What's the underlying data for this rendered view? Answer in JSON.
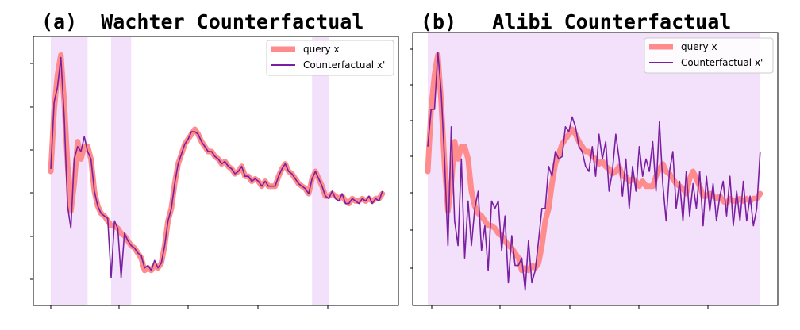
{
  "chart_data": [
    {
      "type": "line",
      "title": "(a)  Wachter Counterfactual",
      "legend": {
        "position": "top-right",
        "entries": [
          "query x",
          "Counterfactual x'"
        ]
      },
      "colors": {
        "query": "#ff8c8c",
        "counterfactual": "#7b1fa2",
        "highlight": "#f3e1fb"
      },
      "ylim": [
        0,
        1
      ],
      "x_range": [
        0,
        100
      ],
      "highlight_regions": [
        [
          0,
          11
        ],
        [
          18,
          24
        ],
        [
          78,
          83
        ]
      ],
      "series": [
        {
          "name": "query x",
          "x": [
            0,
            1,
            2,
            3,
            4,
            5,
            6,
            7,
            8,
            9,
            10,
            11,
            12,
            13,
            14,
            15,
            16,
            17,
            18,
            19,
            20,
            21,
            22,
            23,
            24,
            25,
            26,
            27,
            28,
            29,
            30,
            31,
            32,
            33,
            34,
            35,
            36,
            37,
            38,
            39,
            40,
            41,
            42,
            43,
            44,
            45,
            46,
            47,
            48,
            49,
            50,
            51,
            52,
            53,
            54,
            55,
            56,
            57,
            58,
            59,
            60,
            61,
            62,
            63,
            64,
            65,
            66,
            67,
            68,
            69,
            70,
            71,
            72,
            73,
            74,
            75,
            76,
            77,
            78,
            79,
            80,
            81,
            82,
            83,
            84,
            85,
            86,
            87,
            88,
            89,
            90,
            91,
            92,
            93,
            94,
            95,
            96,
            97,
            98,
            99
          ],
          "values": [
            0.5,
            0.75,
            0.89,
            0.97,
            0.78,
            0.53,
            0.34,
            0.45,
            0.62,
            0.55,
            0.6,
            0.6,
            0.55,
            0.42,
            0.36,
            0.33,
            0.32,
            0.3,
            0.28,
            0.28,
            0.27,
            0.25,
            0.24,
            0.22,
            0.2,
            0.19,
            0.17,
            0.15,
            0.1,
            0.11,
            0.1,
            0.12,
            0.11,
            0.13,
            0.2,
            0.3,
            0.35,
            0.45,
            0.53,
            0.57,
            0.61,
            0.63,
            0.65,
            0.67,
            0.65,
            0.62,
            0.6,
            0.58,
            0.58,
            0.56,
            0.55,
            0.53,
            0.54,
            0.52,
            0.51,
            0.49,
            0.5,
            0.52,
            0.48,
            0.48,
            0.46,
            0.47,
            0.46,
            0.44,
            0.46,
            0.44,
            0.44,
            0.44,
            0.48,
            0.51,
            0.53,
            0.5,
            0.49,
            0.47,
            0.45,
            0.44,
            0.43,
            0.41,
            0.47,
            0.5,
            0.47,
            0.44,
            0.4,
            0.4,
            0.41,
            0.4,
            0.39,
            0.4,
            0.38,
            0.37,
            0.39,
            0.38,
            0.38,
            0.39,
            0.38,
            0.39,
            0.38,
            0.39,
            0.39,
            0.41
          ]
        },
        {
          "name": "Counterfactual x'",
          "x": [
            0,
            1,
            2,
            3,
            4,
            5,
            6,
            7,
            8,
            9,
            10,
            11,
            12,
            13,
            14,
            15,
            16,
            17,
            18,
            19,
            20,
            21,
            22,
            23,
            24,
            25,
            26,
            27,
            28,
            29,
            30,
            31,
            32,
            33,
            34,
            35,
            36,
            37,
            38,
            39,
            40,
            41,
            42,
            43,
            44,
            45,
            46,
            47,
            48,
            49,
            50,
            51,
            52,
            53,
            54,
            55,
            56,
            57,
            58,
            59,
            60,
            61,
            62,
            63,
            64,
            65,
            66,
            67,
            68,
            69,
            70,
            71,
            72,
            73,
            74,
            75,
            76,
            77,
            78,
            79,
            80,
            81,
            82,
            83,
            84,
            85,
            86,
            87,
            88,
            89,
            90,
            91,
            92,
            93,
            94,
            95,
            96,
            97,
            98,
            99
          ],
          "values": [
            0.51,
            0.78,
            0.84,
            0.96,
            0.72,
            0.36,
            0.27,
            0.55,
            0.6,
            0.58,
            0.64,
            0.58,
            0.55,
            0.42,
            0.36,
            0.33,
            0.32,
            0.31,
            0.07,
            0.3,
            0.27,
            0.07,
            0.25,
            0.22,
            0.2,
            0.19,
            0.17,
            0.16,
            0.11,
            0.12,
            0.1,
            0.14,
            0.11,
            0.13,
            0.2,
            0.3,
            0.35,
            0.45,
            0.53,
            0.57,
            0.61,
            0.63,
            0.66,
            0.66,
            0.65,
            0.62,
            0.6,
            0.58,
            0.58,
            0.56,
            0.55,
            0.53,
            0.54,
            0.52,
            0.51,
            0.49,
            0.5,
            0.52,
            0.48,
            0.48,
            0.46,
            0.47,
            0.46,
            0.44,
            0.46,
            0.44,
            0.44,
            0.44,
            0.48,
            0.51,
            0.53,
            0.5,
            0.49,
            0.47,
            0.45,
            0.44,
            0.43,
            0.41,
            0.47,
            0.5,
            0.47,
            0.44,
            0.4,
            0.39,
            0.42,
            0.39,
            0.38,
            0.41,
            0.37,
            0.37,
            0.39,
            0.38,
            0.37,
            0.39,
            0.38,
            0.4,
            0.37,
            0.39,
            0.38,
            0.42
          ]
        }
      ]
    },
    {
      "type": "line",
      "title": "(b)   Alibi Counterfactual",
      "legend": {
        "position": "top-right",
        "entries": [
          "query x",
          "Counterfactual x'"
        ]
      },
      "colors": {
        "query": "#ff8c8c",
        "counterfactual": "#7b1fa2",
        "highlight": "#f3e1fb"
      },
      "ylim": [
        0,
        1
      ],
      "x_range": [
        0,
        100
      ],
      "highlight_regions": [
        [
          0,
          99
        ]
      ],
      "series": [
        {
          "name": "query x",
          "x": [
            0,
            1,
            2,
            3,
            4,
            5,
            6,
            7,
            8,
            9,
            10,
            11,
            12,
            13,
            14,
            15,
            16,
            17,
            18,
            19,
            20,
            21,
            22,
            23,
            24,
            25,
            26,
            27,
            28,
            29,
            30,
            31,
            32,
            33,
            34,
            35,
            36,
            37,
            38,
            39,
            40,
            41,
            42,
            43,
            44,
            45,
            46,
            47,
            48,
            49,
            50,
            51,
            52,
            53,
            54,
            55,
            56,
            57,
            58,
            59,
            60,
            61,
            62,
            63,
            64,
            65,
            66,
            67,
            68,
            69,
            70,
            71,
            72,
            73,
            74,
            75,
            76,
            77,
            78,
            79,
            80,
            81,
            82,
            83,
            84,
            85,
            86,
            87,
            88,
            89,
            90,
            91,
            92,
            93,
            94,
            95,
            96,
            97,
            98,
            99
          ],
          "values": [
            0.5,
            0.75,
            0.89,
            0.97,
            0.78,
            0.53,
            0.34,
            0.45,
            0.62,
            0.55,
            0.6,
            0.6,
            0.55,
            0.42,
            0.36,
            0.33,
            0.32,
            0.3,
            0.28,
            0.28,
            0.27,
            0.25,
            0.24,
            0.22,
            0.2,
            0.19,
            0.17,
            0.15,
            0.1,
            0.11,
            0.1,
            0.12,
            0.11,
            0.13,
            0.2,
            0.3,
            0.35,
            0.45,
            0.53,
            0.57,
            0.61,
            0.63,
            0.65,
            0.67,
            0.65,
            0.62,
            0.6,
            0.58,
            0.58,
            0.56,
            0.55,
            0.53,
            0.54,
            0.52,
            0.51,
            0.49,
            0.5,
            0.52,
            0.48,
            0.48,
            0.46,
            0.47,
            0.46,
            0.44,
            0.46,
            0.44,
            0.44,
            0.44,
            0.48,
            0.51,
            0.53,
            0.5,
            0.49,
            0.47,
            0.45,
            0.44,
            0.43,
            0.41,
            0.47,
            0.5,
            0.47,
            0.44,
            0.4,
            0.4,
            0.41,
            0.4,
            0.39,
            0.4,
            0.38,
            0.37,
            0.39,
            0.38,
            0.38,
            0.39,
            0.38,
            0.39,
            0.38,
            0.39,
            0.39,
            0.41
          ]
        },
        {
          "name": "Counterfactual x'",
          "x": [
            0,
            1,
            2,
            3,
            4,
            5,
            6,
            7,
            8,
            9,
            10,
            11,
            12,
            13,
            14,
            15,
            16,
            17,
            18,
            19,
            20,
            21,
            22,
            23,
            24,
            25,
            26,
            27,
            28,
            29,
            30,
            31,
            32,
            33,
            34,
            35,
            36,
            37,
            38,
            39,
            40,
            41,
            42,
            43,
            44,
            45,
            46,
            47,
            48,
            49,
            50,
            51,
            52,
            53,
            54,
            55,
            56,
            57,
            58,
            59,
            60,
            61,
            62,
            63,
            64,
            65,
            66,
            67,
            68,
            69,
            70,
            71,
            72,
            73,
            74,
            75,
            76,
            77,
            78,
            79,
            80,
            81,
            82,
            83,
            84,
            85,
            86,
            87,
            88,
            89,
            90,
            91,
            92,
            93,
            94,
            95,
            96,
            97,
            98,
            99
          ],
          "values": [
            0.6,
            0.75,
            0.75,
            0.98,
            0.82,
            0.55,
            0.2,
            0.68,
            0.3,
            0.2,
            0.55,
            0.15,
            0.38,
            0.2,
            0.35,
            0.42,
            0.18,
            0.28,
            0.1,
            0.38,
            0.35,
            0.38,
            0.18,
            0.32,
            0.05,
            0.24,
            0.12,
            0.12,
            0.15,
            0.02,
            0.22,
            0.05,
            0.1,
            0.22,
            0.35,
            0.35,
            0.52,
            0.48,
            0.58,
            0.55,
            0.56,
            0.68,
            0.66,
            0.72,
            0.68,
            0.6,
            0.58,
            0.52,
            0.5,
            0.6,
            0.48,
            0.65,
            0.55,
            0.62,
            0.42,
            0.5,
            0.65,
            0.55,
            0.4,
            0.55,
            0.35,
            0.52,
            0.42,
            0.6,
            0.48,
            0.55,
            0.5,
            0.62,
            0.42,
            0.7,
            0.45,
            0.3,
            0.5,
            0.58,
            0.35,
            0.46,
            0.3,
            0.5,
            0.32,
            0.45,
            0.35,
            0.5,
            0.28,
            0.48,
            0.34,
            0.45,
            0.3,
            0.4,
            0.46,
            0.32,
            0.48,
            0.28,
            0.42,
            0.3,
            0.46,
            0.3,
            0.4,
            0.28,
            0.35,
            0.58
          ]
        }
      ]
    }
  ]
}
